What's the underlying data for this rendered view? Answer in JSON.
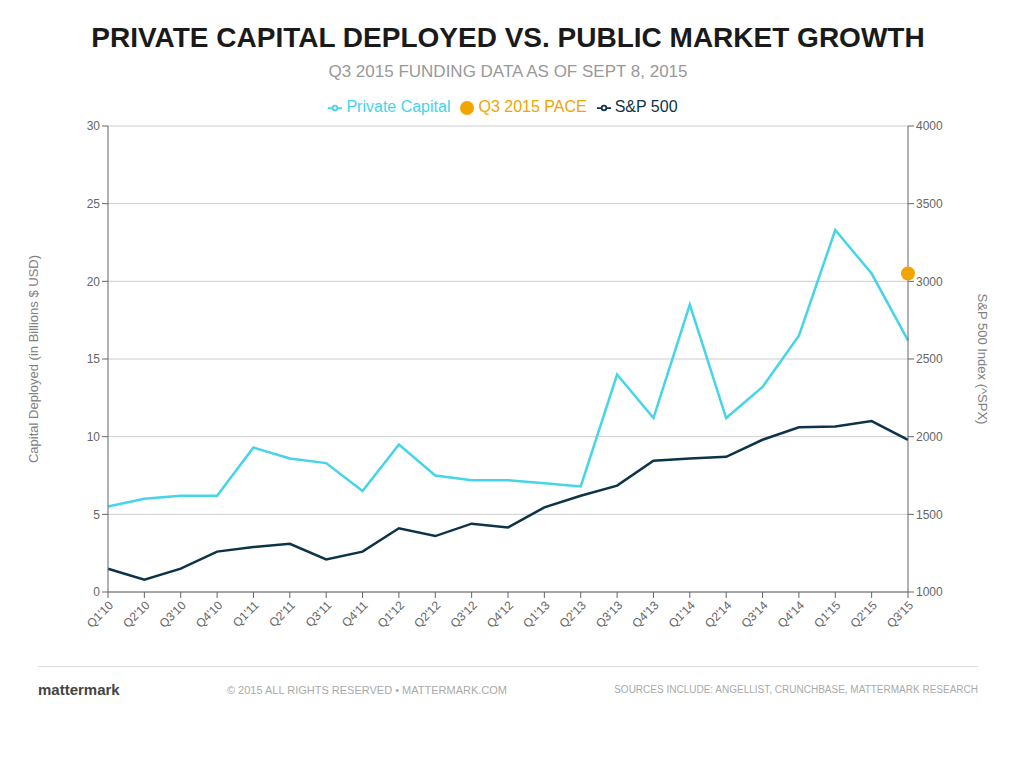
{
  "chart_data": {
    "type": "line",
    "title": "PRIVATE CAPITAL DEPLOYED VS. PUBLIC MARKET GROWTH",
    "subtitle": "Q3 2015 FUNDING DATA AS OF SEPT 8, 2015",
    "ylabel": "Capital Deployed (in Billions $ USD)",
    "y2label": "S&P 500 Index (^SPX)",
    "categories": [
      "Q1'10",
      "Q2'10",
      "Q3'10",
      "Q4'10",
      "Q1'11",
      "Q2'11",
      "Q3'11",
      "Q4'11",
      "Q1'12",
      "Q2'12",
      "Q3'12",
      "Q4'12",
      "Q1'13",
      "Q2'13",
      "Q3'13",
      "Q4'13",
      "Q1'14",
      "Q2'14",
      "Q3'14",
      "Q4'14",
      "Q1'15",
      "Q2'15",
      "Q3'15"
    ],
    "series": [
      {
        "name": "Private Capital",
        "color": "#45d4e8",
        "values": [
          5.5,
          6.0,
          6.2,
          6.2,
          9.3,
          8.6,
          8.3,
          6.5,
          9.5,
          7.5,
          7.2,
          7.2,
          7.0,
          6.8,
          14.0,
          11.2,
          18.5,
          11.2,
          13.2,
          16.5,
          23.3,
          20.5,
          16.2
        ]
      },
      {
        "name": "Q3 2015 PACE",
        "type": "scatter",
        "marker": "circle",
        "color": "#f0a500",
        "values": [
          null,
          null,
          null,
          null,
          null,
          null,
          null,
          null,
          null,
          null,
          null,
          null,
          null,
          null,
          null,
          null,
          null,
          null,
          null,
          null,
          null,
          null,
          20.5
        ]
      },
      {
        "name": "S&P 500",
        "color": "#0d3349",
        "axis": "y2",
        "values": [
          1150,
          1080,
          1150,
          1260,
          1290,
          1310,
          1210,
          1260,
          1410,
          1360,
          1440,
          1415,
          1545,
          1620,
          1685,
          1845,
          1860,
          1870,
          1980,
          2060,
          2065,
          2100,
          1980
        ]
      }
    ],
    "ylim": [
      0,
      30
    ],
    "yticks": [
      0,
      5,
      10,
      15,
      20,
      25,
      30
    ],
    "y2lim": [
      1000,
      4000
    ],
    "y2ticks": [
      1000,
      1500,
      2000,
      2500,
      3000,
      3500,
      4000
    ],
    "grid": true,
    "legend": "top",
    "annotations": [
      "mattermark",
      "© 2015 ALL RIGHTS RESERVED  •  MATTERMARK.COM",
      "SOURCES INCLUDE: ANGELLIST, CRUNCHBASE, MATTERMARK RESEARCH"
    ]
  }
}
